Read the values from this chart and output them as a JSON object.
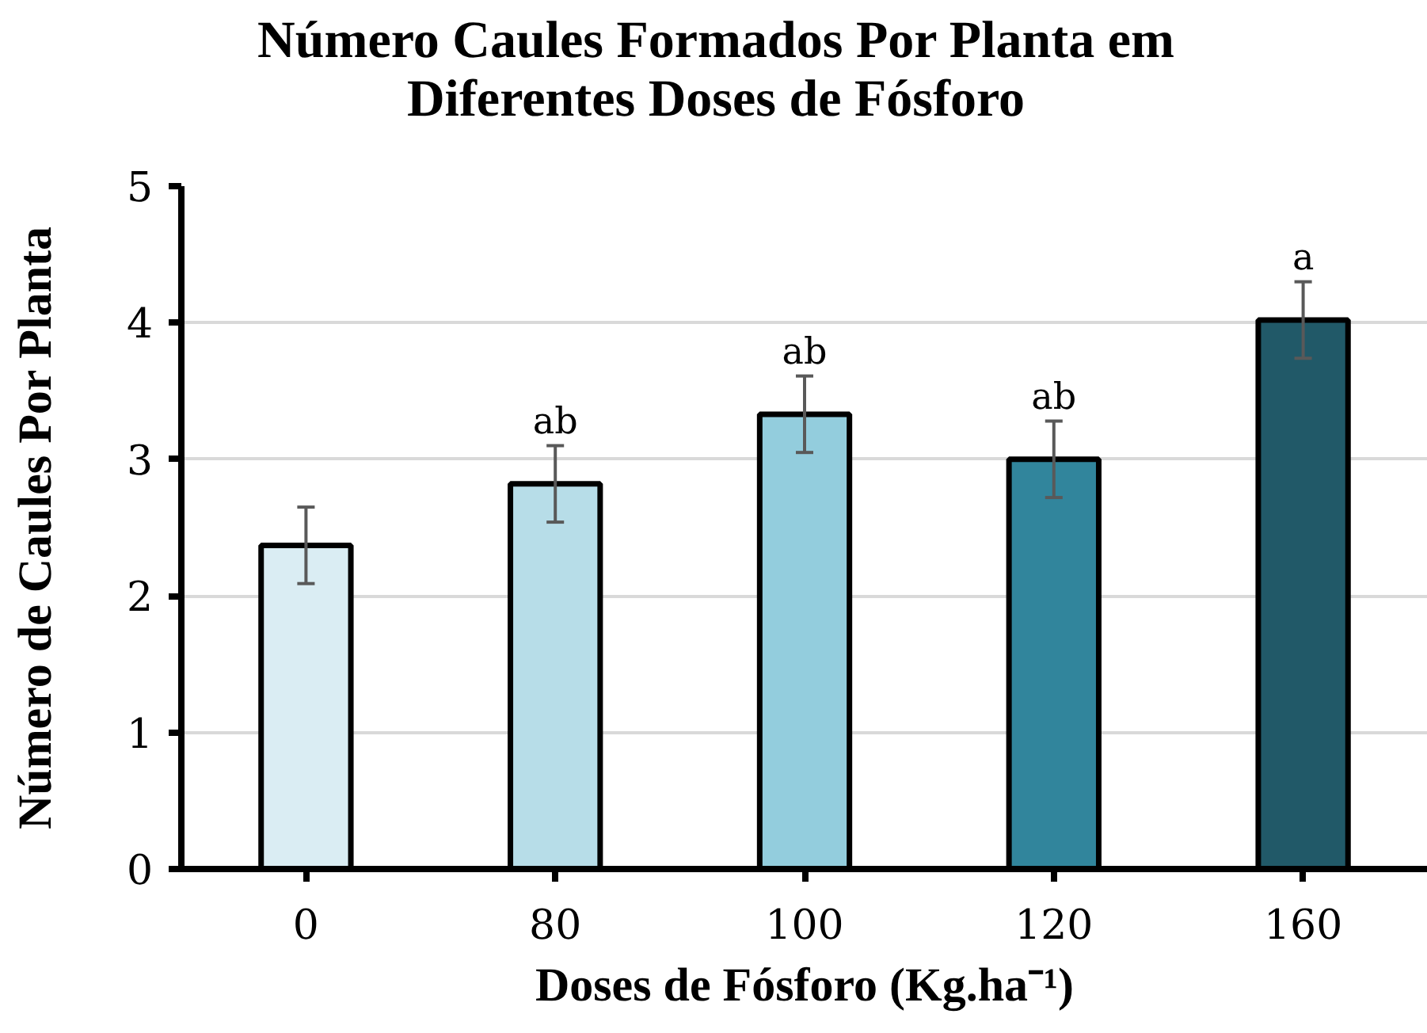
{
  "chart_data": {
    "type": "bar",
    "title": "Número Caules Formados Por Planta em Diferentes Doses de Fósforo",
    "xlabel": "Doses de Fósforo (Kg.ha⁻¹)",
    "ylabel": "Número de Caules Por Planta",
    "categories": [
      "0",
      "80",
      "100",
      "120",
      "160"
    ],
    "values": [
      2.37,
      2.82,
      3.33,
      3.0,
      4.02
    ],
    "colors": [
      "#daedf3",
      "#b7dde8",
      "#93cddd",
      "#31859c",
      "#215968"
    ],
    "errors": [
      0.28,
      0.28,
      0.28,
      0.28,
      0.28
    ],
    "value_labels": [
      null,
      "ab",
      "ab",
      "ab",
      "a"
    ],
    "ylim": [
      0,
      5
    ],
    "yticks": [
      0,
      1,
      2,
      3,
      4,
      5
    ],
    "grid": "y"
  }
}
